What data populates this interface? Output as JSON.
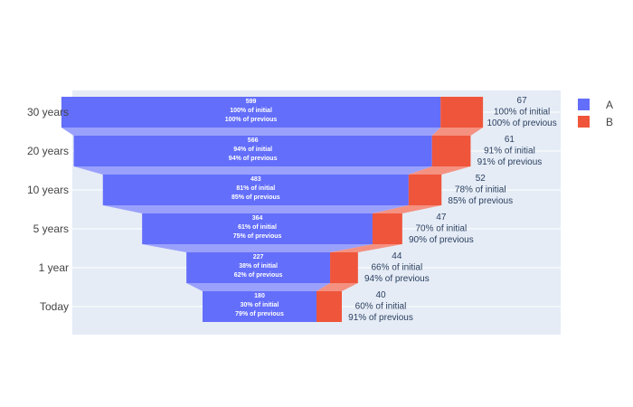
{
  "chart_data": {
    "type": "funnel",
    "categories": [
      "30 years",
      "20 years",
      "10 years",
      "5 years",
      "1 year",
      "Today"
    ],
    "series": [
      {
        "name": "A",
        "color": "#636efa",
        "values": [
          599,
          566,
          483,
          364,
          227,
          180
        ],
        "pct_initial": [
          "100% of initial",
          "94% of initial",
          "81% of initial",
          "61% of initial",
          "38% of initial",
          "30% of initial"
        ],
        "pct_previous": [
          "100% of previous",
          "94% of previous",
          "85% of previous",
          "75% of previous",
          "62% of previous",
          "79% of previous"
        ]
      },
      {
        "name": "B",
        "color": "#ef553b",
        "values": [
          67,
          61,
          52,
          47,
          44,
          40
        ],
        "pct_initial": [
          "100% of initial",
          "91% of initial",
          "78% of initial",
          "70% of initial",
          "66% of initial",
          "60% of initial"
        ],
        "pct_previous": [
          "100% of previous",
          "91% of previous",
          "85% of previous",
          "90% of previous",
          "94% of previous",
          "91% of previous"
        ]
      }
    ],
    "legend_position": "top-right",
    "background_color": "#e5ecf6"
  }
}
